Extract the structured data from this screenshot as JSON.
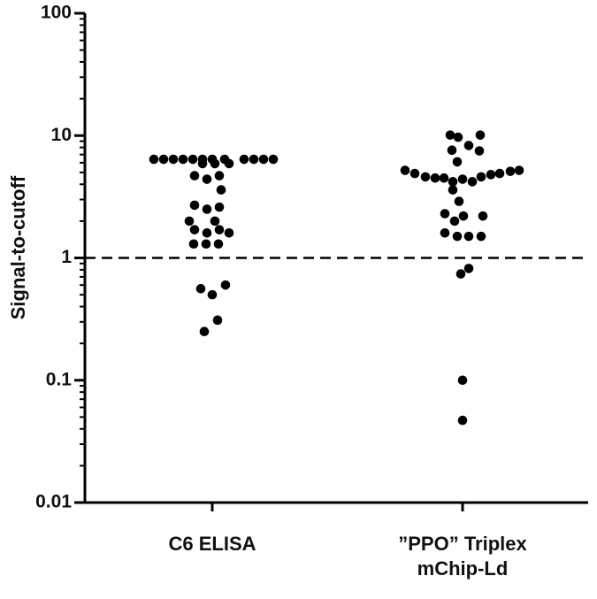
{
  "chart_data": {
    "type": "scatter",
    "subtype": "dot-plot",
    "ylabel": "Signal-to-cutoff",
    "yscale": "log",
    "ylim": [
      0.01,
      100
    ],
    "yticks": [
      {
        "value": 100,
        "label": "100"
      },
      {
        "value": 10,
        "label": "10"
      },
      {
        "value": 1,
        "label": "1"
      },
      {
        "value": 0.1,
        "label": "0.1"
      },
      {
        "value": 0.01,
        "label": "0.01"
      }
    ],
    "cutoff": 1,
    "cutoff_style": "dashed",
    "categories": [
      {
        "lines": [
          "C6 ELISA"
        ]
      },
      {
        "lines": [
          "”PPO” Triplex",
          "mChip-Ld"
        ]
      }
    ],
    "points": [
      [
        {
          "y": 6.4,
          "dx": -66
        },
        {
          "y": 6.4,
          "dx": -55
        },
        {
          "y": 6.4,
          "dx": -44
        },
        {
          "y": 6.4,
          "dx": -33
        },
        {
          "y": 6.4,
          "dx": -22
        },
        {
          "y": 6.4,
          "dx": -11
        },
        {
          "y": 6.4,
          "dx": 0
        },
        {
          "y": 6.4,
          "dx": 14
        },
        {
          "y": 6.4,
          "dx": 36
        },
        {
          "y": 6.4,
          "dx": 47
        },
        {
          "y": 6.4,
          "dx": 58
        },
        {
          "y": 6.4,
          "dx": 69
        },
        {
          "y": 5.9,
          "dx": -11
        },
        {
          "y": 5.9,
          "dx": 3
        },
        {
          "y": 5.9,
          "dx": 19
        },
        {
          "y": 4.7,
          "dx": -20
        },
        {
          "y": 4.4,
          "dx": -6
        },
        {
          "y": 4.7,
          "dx": 8
        },
        {
          "y": 3.6,
          "dx": 10
        },
        {
          "y": 2.7,
          "dx": -20
        },
        {
          "y": 2.5,
          "dx": -6
        },
        {
          "y": 2.6,
          "dx": 8
        },
        {
          "y": 2.0,
          "dx": -26
        },
        {
          "y": 2.0,
          "dx": 3
        },
        {
          "y": 1.7,
          "dx": -20
        },
        {
          "y": 1.6,
          "dx": -6
        },
        {
          "y": 1.7,
          "dx": 8
        },
        {
          "y": 1.6,
          "dx": 19
        },
        {
          "y": 1.3,
          "dx": -21
        },
        {
          "y": 1.3,
          "dx": -7
        },
        {
          "y": 1.3,
          "dx": 7
        },
        {
          "y": 0.6,
          "dx": 15
        },
        {
          "y": 0.56,
          "dx": -13
        },
        {
          "y": 0.5,
          "dx": 0
        },
        {
          "y": 0.31,
          "dx": 6
        },
        {
          "y": 0.25,
          "dx": -9
        }
      ],
      [
        {
          "y": 10.1,
          "dx": -14
        },
        {
          "y": 10.1,
          "dx": 20
        },
        {
          "y": 9.7,
          "dx": -5
        },
        {
          "y": 8.3,
          "dx": 7
        },
        {
          "y": 7.6,
          "dx": -12
        },
        {
          "y": 7.5,
          "dx": 19
        },
        {
          "y": 6.1,
          "dx": -6
        },
        {
          "y": 5.2,
          "dx": -65
        },
        {
          "y": 4.9,
          "dx": -54
        },
        {
          "y": 4.6,
          "dx": -42
        },
        {
          "y": 4.5,
          "dx": -31
        },
        {
          "y": 4.5,
          "dx": -21
        },
        {
          "y": 4.2,
          "dx": -11
        },
        {
          "y": 4.4,
          "dx": 0
        },
        {
          "y": 4.2,
          "dx": 11
        },
        {
          "y": 4.6,
          "dx": 21
        },
        {
          "y": 4.8,
          "dx": 32
        },
        {
          "y": 4.9,
          "dx": 42
        },
        {
          "y": 5.1,
          "dx": 54
        },
        {
          "y": 5.2,
          "dx": 64
        },
        {
          "y": 3.6,
          "dx": -11
        },
        {
          "y": 2.9,
          "dx": -4
        },
        {
          "y": 2.3,
          "dx": -20
        },
        {
          "y": 2.2,
          "dx": 1
        },
        {
          "y": 2.2,
          "dx": 23
        },
        {
          "y": 2.0,
          "dx": -9
        },
        {
          "y": 1.6,
          "dx": -20
        },
        {
          "y": 1.5,
          "dx": -6
        },
        {
          "y": 1.5,
          "dx": 7
        },
        {
          "y": 1.5,
          "dx": 21
        },
        {
          "y": 0.82,
          "dx": 7
        },
        {
          "y": 0.74,
          "dx": -2
        },
        {
          "y": 0.1,
          "dx": 0
        },
        {
          "y": 0.047,
          "dx": 0
        }
      ]
    ]
  }
}
